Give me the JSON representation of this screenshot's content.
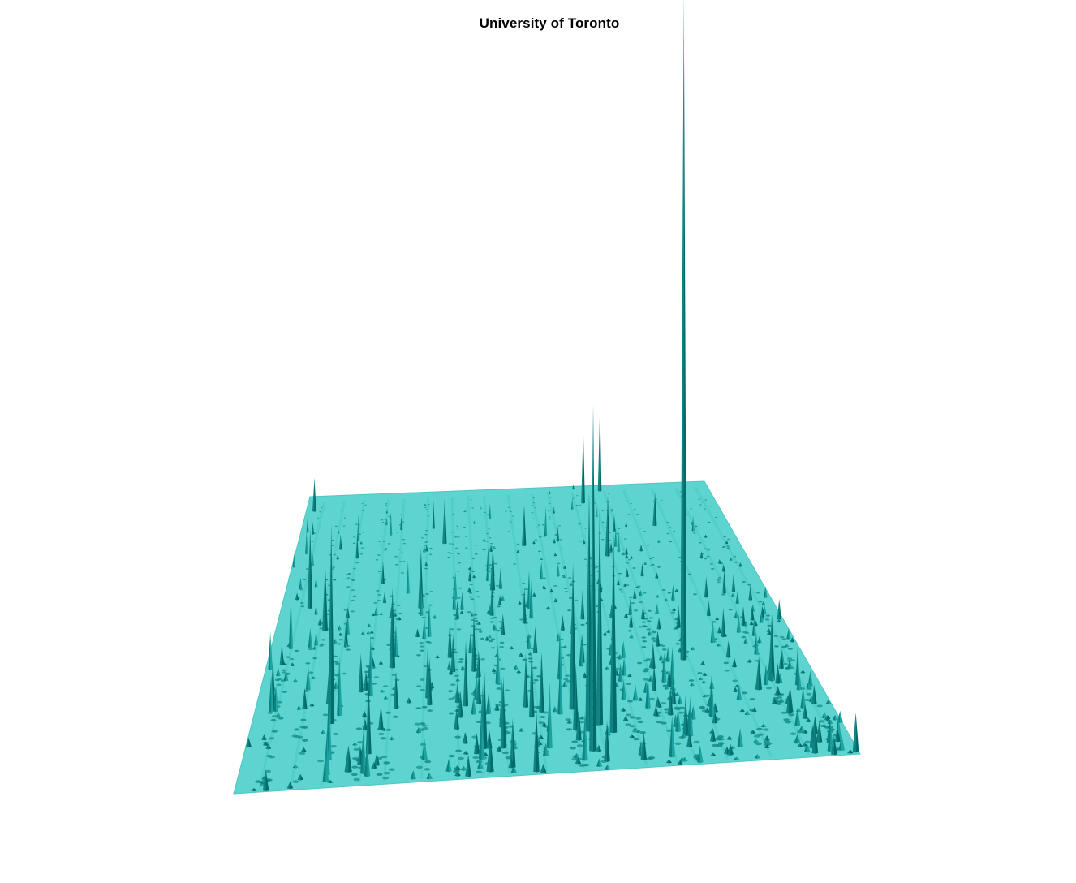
{
  "chart_data": {
    "type": "surface3d",
    "title": "University of Toronto",
    "xlabel": "",
    "ylabel": "",
    "zlabel": "",
    "axes_visible": false,
    "grid": false,
    "legend": "none",
    "colors": {
      "plane": "#5dd4cf",
      "plane_shadow": "#4fc6c1",
      "spike_light": "#1aa3a0",
      "spike_mid": "#0e8382",
      "spike_dark": "#006b6b",
      "dot": "#1b8f8c"
    },
    "peaks": [
      {
        "u": 0.78,
        "v": 0.63,
        "z": 1.0
      },
      {
        "u": 0.58,
        "v": 0.93,
        "z": 0.52
      },
      {
        "u": 0.58,
        "v": 0.86,
        "z": 0.36
      },
      {
        "u": 0.6,
        "v": 0.84,
        "z": 0.33
      },
      {
        "u": 0.62,
        "v": 0.87,
        "z": 0.3
      },
      {
        "u": 0.56,
        "v": 0.78,
        "z": 0.22
      },
      {
        "u": 0.14,
        "v": 0.78,
        "z": 0.3
      },
      {
        "u": 0.18,
        "v": 0.95,
        "z": 0.04
      },
      {
        "u": 0.41,
        "v": 0.98,
        "z": 0.05
      },
      {
        "u": 0.89,
        "v": 0.75,
        "z": 0.05
      },
      {
        "u": 0.92,
        "v": 0.72,
        "z": 0.1
      },
      {
        "u": 0.73,
        "v": 0.02,
        "z": 0.13
      },
      {
        "u": 0.68,
        "v": 0.06,
        "z": 0.11
      },
      {
        "u": 0.7,
        "v": 0.25,
        "z": 0.09
      },
      {
        "u": 0.06,
        "v": 0.38,
        "z": 0.12
      },
      {
        "u": 0.1,
        "v": 0.46,
        "z": 0.1
      },
      {
        "u": 0.24,
        "v": 0.6,
        "z": 0.12
      },
      {
        "u": 0.29,
        "v": 0.4,
        "z": 0.09
      },
      {
        "u": 0.34,
        "v": 0.18,
        "z": 0.07
      },
      {
        "u": 0.44,
        "v": 0.35,
        "z": 0.06
      },
      {
        "u": 0.02,
        "v": 0.05,
        "z": 0.05
      },
      {
        "u": 0.52,
        "v": 0.2,
        "z": 0.06
      },
      {
        "u": 0.83,
        "v": 0.15,
        "z": 0.05
      }
    ],
    "column_bands_u": [
      0.04,
      0.09,
      0.14,
      0.2,
      0.24,
      0.3,
      0.36,
      0.4,
      0.44,
      0.5,
      0.56,
      0.6,
      0.66,
      0.71,
      0.74,
      0.79,
      0.86,
      0.92,
      0.97
    ]
  }
}
